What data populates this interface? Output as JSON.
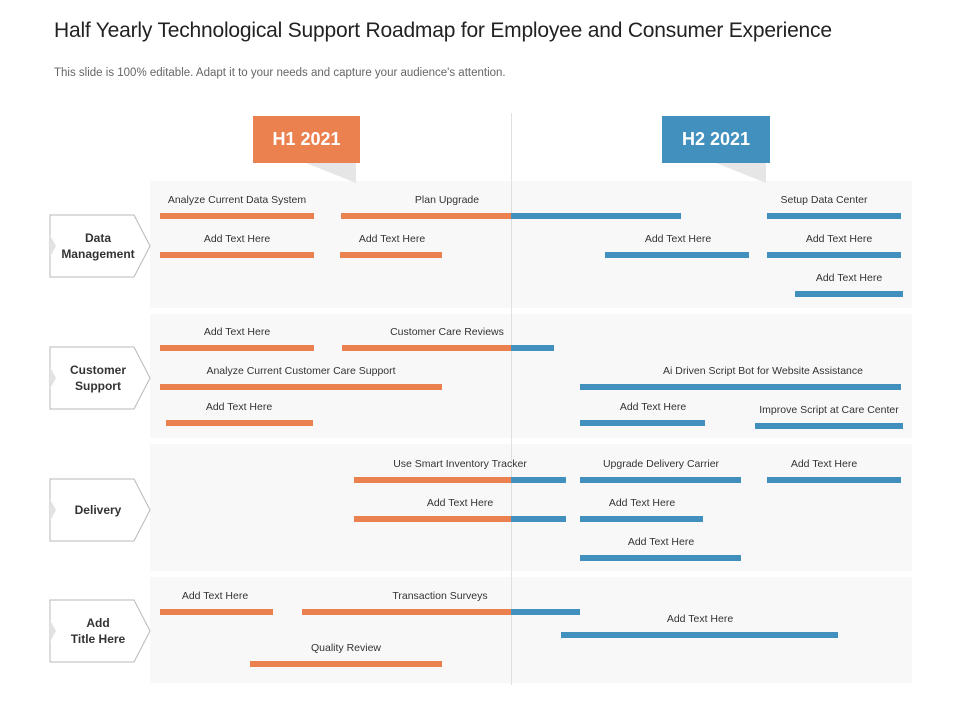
{
  "header": {
    "title": "Half Yearly Technological Support Roadmap for Employee and Consumer Experience",
    "subtitle": "This slide is 100% editable. Adapt it to your needs and capture your audience's attention."
  },
  "phases": {
    "h1": "H1 2021",
    "h2": "H2 2021"
  },
  "categories": [
    {
      "label": "Data\nManagement"
    },
    {
      "label": "Customer\nSupport"
    },
    {
      "label": "Delivery"
    },
    {
      "label": "Add\nTitle Here"
    }
  ],
  "tasks": [
    {
      "label": "Analyze Current Data System"
    },
    {
      "label": "Plan Upgrade"
    },
    {
      "label": "Setup Data Center"
    },
    {
      "label": "Add Text Here"
    },
    {
      "label": "Add Text Here"
    },
    {
      "label": "Add Text Here"
    },
    {
      "label": "Add Text Here"
    },
    {
      "label": "Add Text Here"
    },
    {
      "label": "Add Text Here"
    },
    {
      "label": "Customer Care Reviews"
    },
    {
      "label": "Analyze Current Customer Care Support"
    },
    {
      "label": "Ai Driven Script Bot for Website Assistance"
    },
    {
      "label": "Add Text Here"
    },
    {
      "label": "Add Text Here"
    },
    {
      "label": "Improve Script at Care Center"
    },
    {
      "label": "Use Smart Inventory Tracker"
    },
    {
      "label": "Upgrade Delivery Carrier"
    },
    {
      "label": "Add Text Here"
    },
    {
      "label": "Add Text Here"
    },
    {
      "label": "Add Text Here"
    },
    {
      "label": "Add Text Here"
    },
    {
      "label": "Add Text Here"
    },
    {
      "label": "Transaction Surveys"
    },
    {
      "label": "Add Text Here"
    },
    {
      "label": "Quality Review"
    }
  ]
}
